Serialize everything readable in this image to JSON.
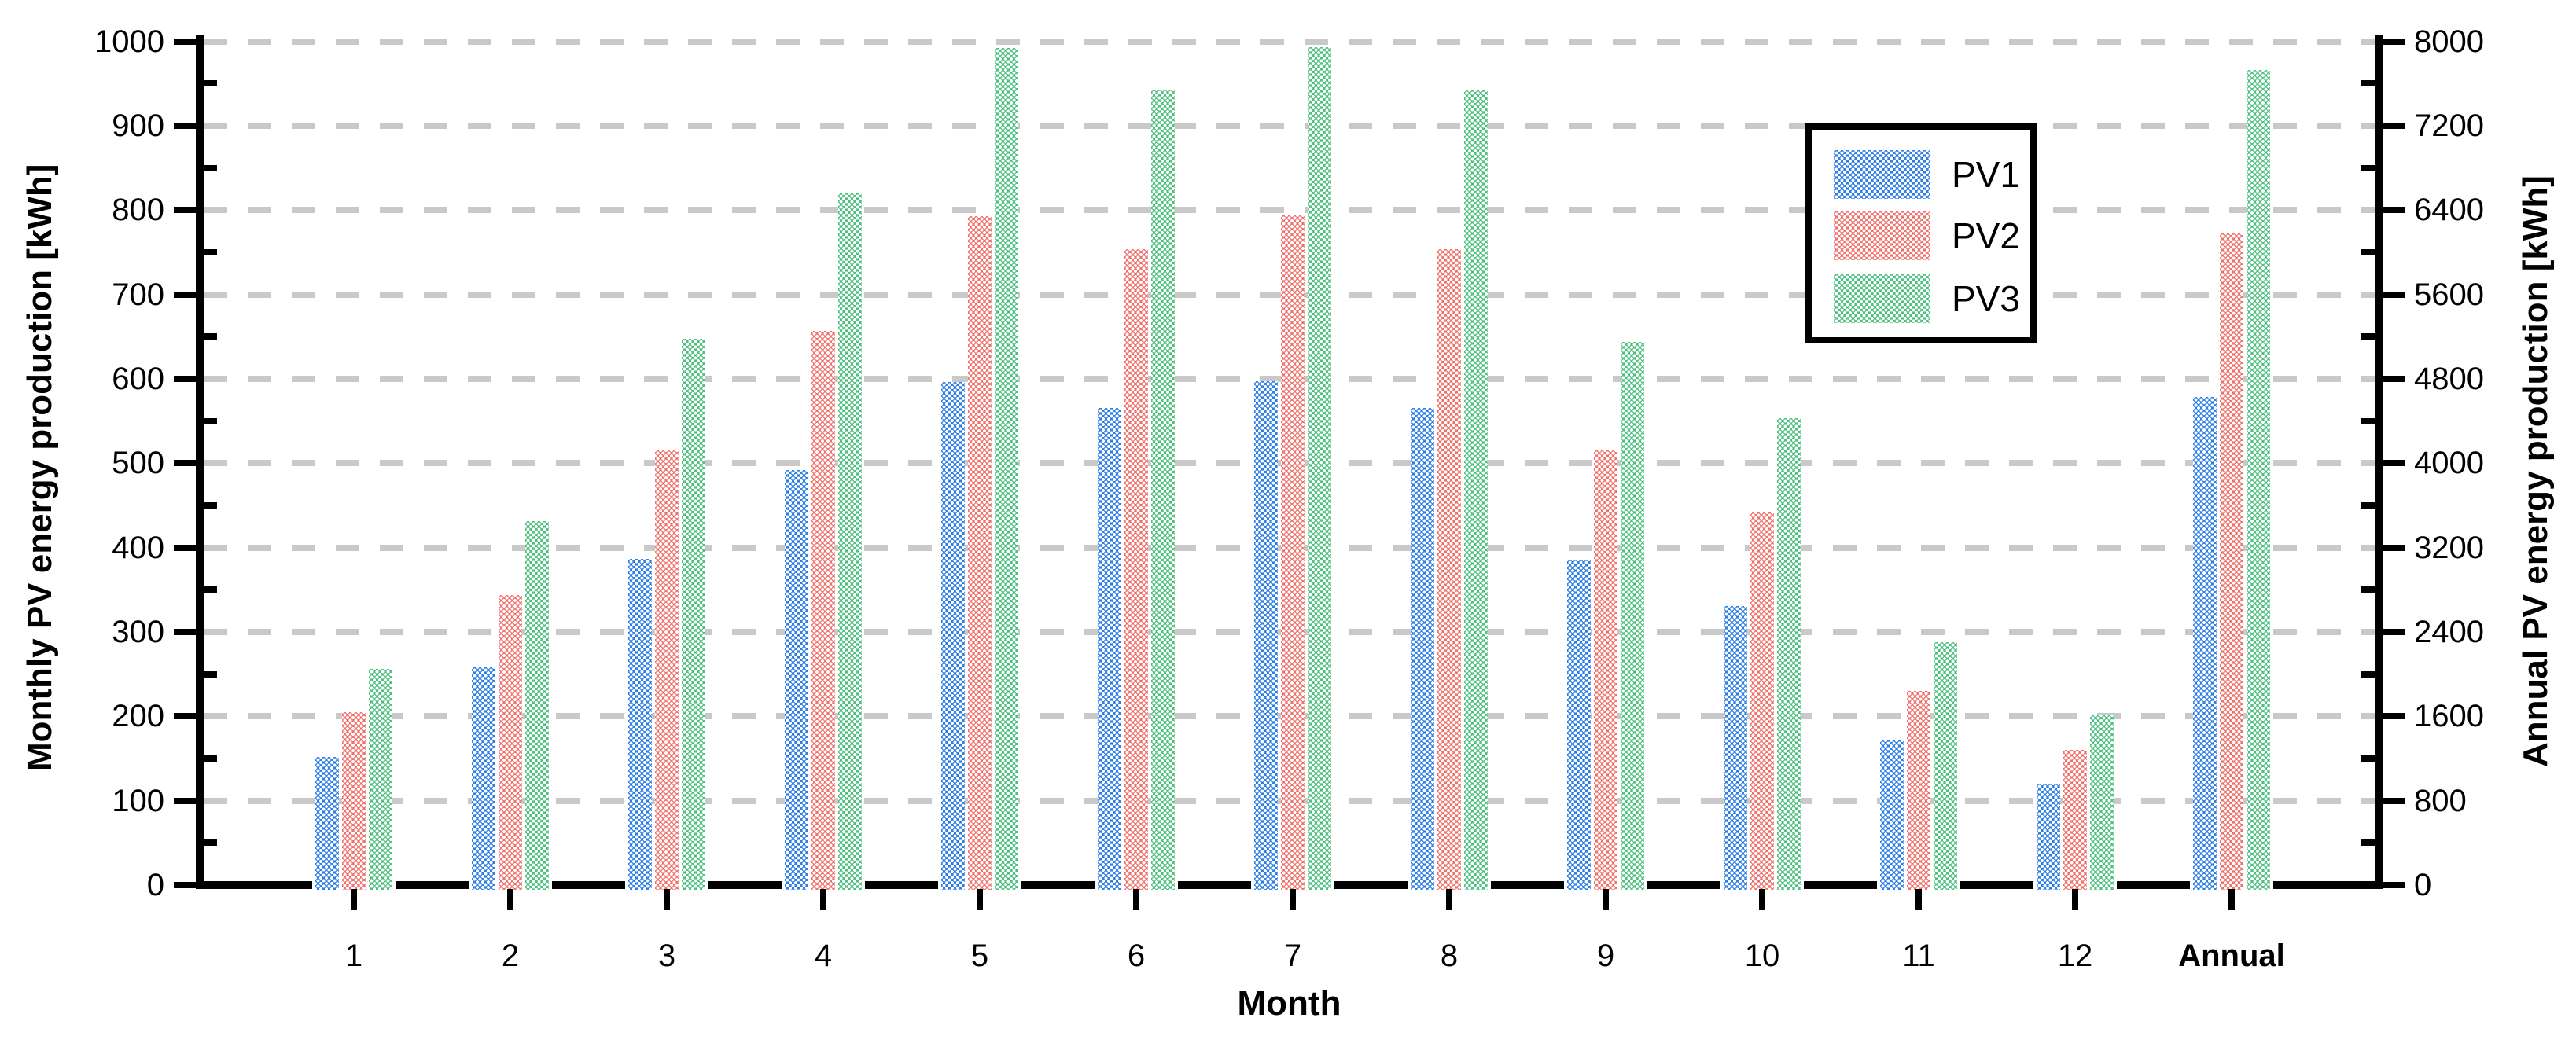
{
  "chart_data": {
    "type": "bar",
    "title": "",
    "xlabel": "Month",
    "ylabel_left": "Monthly PV energy production [kWh]",
    "ylabel_right": "Annual PV energy production [kWh]",
    "categories": [
      "1",
      "2",
      "3",
      "4",
      "5",
      "6",
      "7",
      "8",
      "9",
      "10",
      "11",
      "12",
      "Annual"
    ],
    "series": [
      {
        "name": "PV1",
        "color": "#2e7ee8",
        "monthly": [
          152,
          258,
          387,
          492,
          596,
          565,
          597,
          565,
          386,
          331,
          171,
          120
        ],
        "annual_kwh": 4630
      },
      {
        "name": "PV2",
        "color": "#f2716b",
        "monthly": [
          205,
          344,
          515,
          657,
          793,
          754,
          794,
          754,
          515,
          442,
          230,
          160
        ],
        "annual_kwh": 6180
      },
      {
        "name": "PV3",
        "color": "#4ec17f",
        "monthly": [
          256,
          431,
          647,
          820,
          992,
          943,
          993,
          942,
          644,
          553,
          288,
          201
        ],
        "annual_kwh": 7730
      }
    ],
    "left_axis": {
      "min": 0,
      "max": 1000,
      "ticks": [
        0,
        100,
        200,
        300,
        400,
        500,
        600,
        700,
        800,
        900,
        1000
      ],
      "minor_step": 50
    },
    "right_axis": {
      "min": 0,
      "max": 8000,
      "ticks": [
        0,
        800,
        1600,
        2400,
        3200,
        4000,
        4800,
        5600,
        6400,
        7200,
        8000
      ],
      "minor_step": 400
    },
    "grid": "horizontal dashed gray at left-axis majors",
    "legend_position": "upper right inside plot",
    "note_annual_uses_right_axis": true
  },
  "axes": {
    "x_title": "Month",
    "left_title": "Monthly PV energy production [kWh]",
    "right_title": "Annual PV energy production [kWh]"
  },
  "legend": {
    "items": [
      {
        "label": "PV1",
        "color": "#2e7ee8"
      },
      {
        "label": "PV2",
        "color": "#f2716b"
      },
      {
        "label": "PV3",
        "color": "#4ec17f"
      }
    ]
  },
  "colors": {
    "gridline": "#c9c9c9",
    "axis": "#000000",
    "background": "#ffffff",
    "pv1": "#2e7ee8",
    "pv2": "#f2716b",
    "pv3": "#4ec17f"
  }
}
